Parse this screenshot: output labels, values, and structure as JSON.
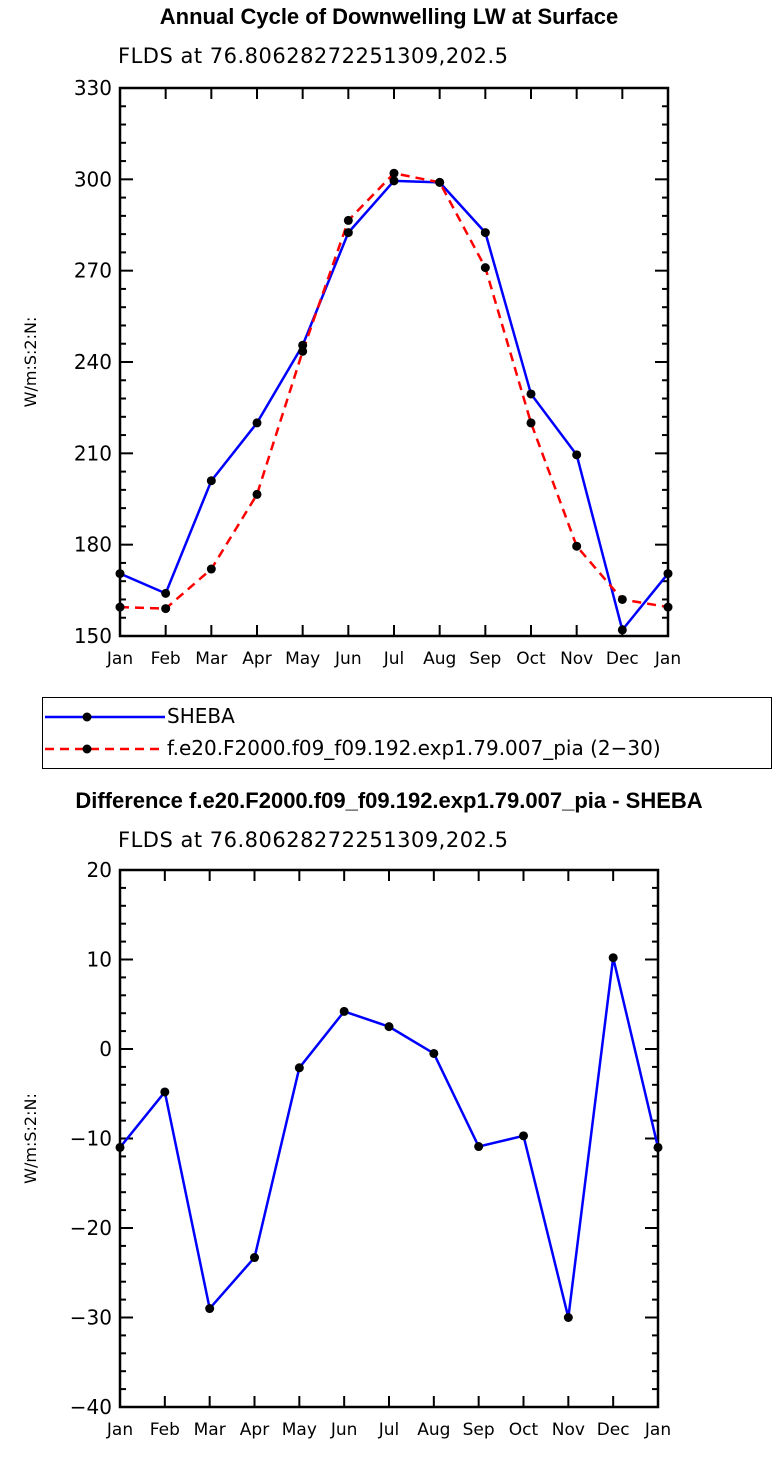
{
  "chart_data": [
    {
      "type": "line",
      "title": "Annual Cycle of Downwelling LW at Surface",
      "subtitle": "FLDS at 76.80628272251309,202.5",
      "xlabel": "",
      "ylabel": "W/m:S:2:N:",
      "categories": [
        "Jan",
        "Feb",
        "Mar",
        "Apr",
        "May",
        "Jun",
        "Jul",
        "Aug",
        "Sep",
        "Oct",
        "Nov",
        "Dec",
        "Jan"
      ],
      "ylim": [
        150,
        330
      ],
      "yticks": [
        150,
        180,
        210,
        240,
        270,
        300,
        330
      ],
      "series": [
        {
          "name": "SHEBA",
          "color": "#0000ff",
          "dash": "solid",
          "values": [
            170.5,
            164,
            201,
            220,
            245.5,
            282.5,
            299.5,
            299,
            282.5,
            229.5,
            209.5,
            152,
            170.5
          ]
        },
        {
          "name": "f.e20.F2000.f09_f09.192.exp1.79.007_pia (2−30)",
          "color": "#ff0000",
          "dash": "dashed",
          "values": [
            159.5,
            159,
            172,
            196.5,
            243.5,
            286.5,
            302,
            299,
            271,
            220,
            179.5,
            162,
            159.5
          ]
        }
      ]
    },
    {
      "type": "line",
      "title": "Difference f.e20.F2000.f09_f09.192.exp1.79.007_pia - SHEBA",
      "subtitle": "FLDS at 76.80628272251309,202.5",
      "xlabel": "",
      "ylabel": "W/m:S:2:N:",
      "categories": [
        "Jan",
        "Feb",
        "Mar",
        "Apr",
        "May",
        "Jun",
        "Jul",
        "Aug",
        "Sep",
        "Oct",
        "Nov",
        "Dec",
        "Jan"
      ],
      "ylim": [
        -40,
        20
      ],
      "yticks": [
        -40,
        -30,
        -20,
        -10,
        0,
        10,
        20
      ],
      "series": [
        {
          "color": "#0000ff",
          "dash": "solid",
          "values": [
            -11,
            -4.8,
            -29,
            -23.3,
            -2.1,
            4.2,
            2.5,
            -0.5,
            -10.9,
            -9.7,
            -30,
            10.2,
            -11
          ]
        }
      ]
    }
  ]
}
